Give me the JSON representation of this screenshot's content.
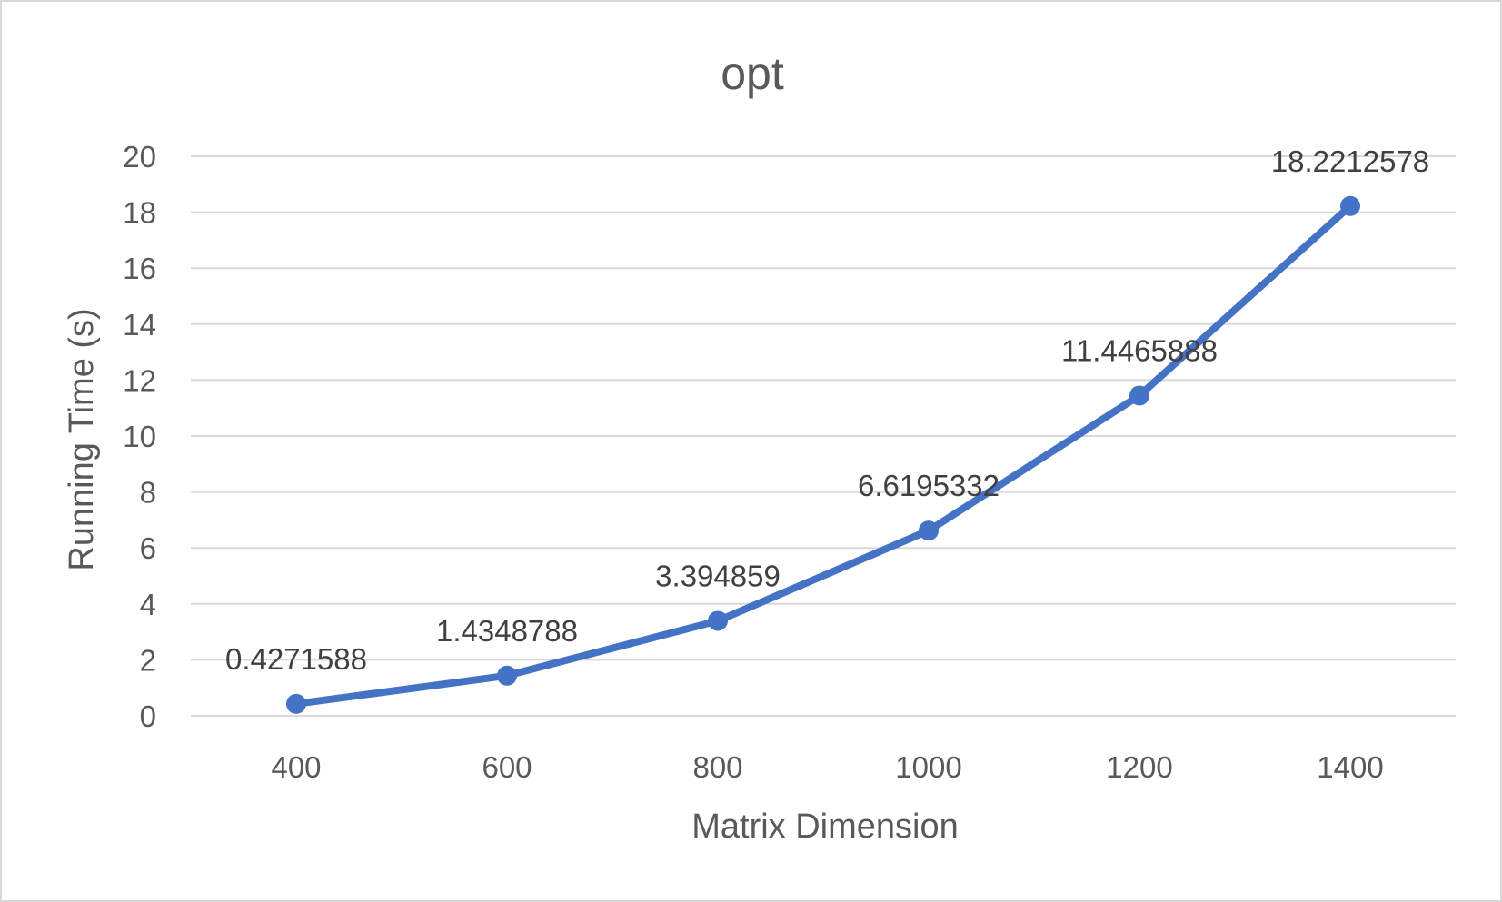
{
  "chart_data": {
    "type": "line",
    "title": "opt",
    "xlabel": "Matrix Dimension",
    "ylabel": "Running Time (s)",
    "categories": [
      "400",
      "600",
      "800",
      "1000",
      "1200",
      "1400"
    ],
    "series": [
      {
        "values": [
          0.4271588,
          1.4348788,
          3.394859,
          6.6195332,
          11.4465888,
          18.2212578
        ],
        "labels": [
          "0.4271588",
          "1.4348788",
          "3.394859",
          "6.6195332",
          "11.4465888",
          "18.2212578"
        ],
        "color": "#4472c4"
      }
    ],
    "ylim": [
      0,
      20
    ],
    "yticks": [
      "0",
      "2",
      "4",
      "6",
      "8",
      "10",
      "12",
      "14",
      "16",
      "18",
      "20"
    ],
    "grid": true,
    "legend": "none"
  }
}
